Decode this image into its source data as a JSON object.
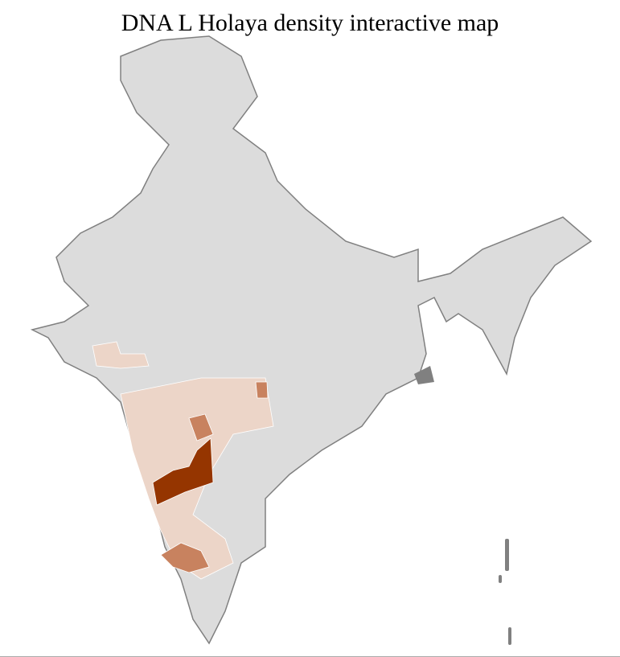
{
  "title": "DNA L Holaya density interactive map",
  "colors": {
    "no_data": "#dcdcdc",
    "border": "#808080",
    "district_border": "#ffffff",
    "low": "#ecd5c8",
    "medium": "#c8825f",
    "high": "#953500"
  }
}
